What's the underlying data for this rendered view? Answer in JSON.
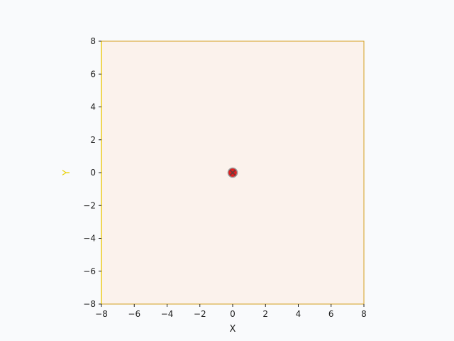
{
  "chart_data": {
    "type": "scatter",
    "xlabel": "X",
    "ylabel": "Y",
    "xlim": [
      -8,
      8
    ],
    "ylim": [
      -8,
      8
    ],
    "x_ticks": [
      -8,
      -6,
      -4,
      -2,
      0,
      2,
      4,
      6,
      8
    ],
    "y_ticks": [
      -8,
      -6,
      -4,
      -2,
      0,
      2,
      4,
      6,
      8
    ],
    "x_tick_labels": [
      "−8",
      "−6",
      "−4",
      "−2",
      "0",
      "2",
      "4",
      "6",
      "8"
    ],
    "y_tick_labels": [
      "−8",
      "−6",
      "−4",
      "−2",
      "0",
      "2",
      "4",
      "6",
      "8"
    ],
    "grid": false,
    "series": [
      {
        "marker": "x-in-circle",
        "x": [
          0
        ],
        "y": [
          0
        ]
      }
    ],
    "colors": {
      "plot_background": "#fbf2ec",
      "figure_background": "#f9fafc",
      "marker_fill": "#e02020",
      "marker_ring": "#9a9a9a",
      "marker_cross": "#6a3a3a",
      "y_axis_accent": "#f2d600"
    }
  }
}
